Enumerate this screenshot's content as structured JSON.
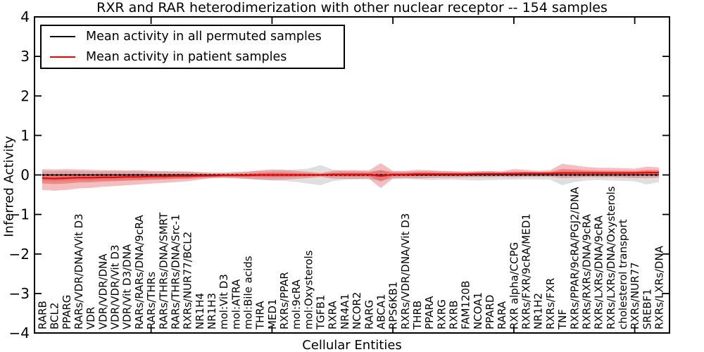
{
  "title": "RXR and RAR heterodimerization with other nuclear receptor -- 154 samples",
  "axes": {
    "ylabel": "Inferred Activity",
    "xlabel": "Cellular Entities",
    "ylim": [
      -4,
      4
    ],
    "yticks": [
      -4,
      -3,
      -2,
      -1,
      0,
      1,
      2,
      3,
      4
    ],
    "x_major_tick_category_indices": [
      9,
      19,
      29,
      39,
      49
    ]
  },
  "legend": {
    "items": [
      {
        "label": "Mean activity in all permuted samples",
        "color": "#000000"
      },
      {
        "label": "Mean activity in patient samples",
        "color": "#ff0000"
      }
    ]
  },
  "colors": {
    "permuted_line": "#000000",
    "patient_line": "#ff0000",
    "permuted_band": "#8a8a8a",
    "patient_band": "#dc2828",
    "frame": "#000000"
  },
  "chart_data": {
    "type": "line",
    "title": "RXR and RAR heterodimerization with other nuclear receptor -- 154 samples",
    "xlabel": "Cellular Entities",
    "ylabel": "Inferred Activity",
    "ylim": [
      -4,
      4
    ],
    "grid": false,
    "legend_position": "upper left",
    "categories": [
      "RARB",
      "BCL2",
      "PPARG",
      "RARs/VDR/DNA/Vit D3",
      "VDR",
      "VDR/VDR/DNA",
      "VDR/VDR/Vit D3",
      "VDR/Vit D3/DNA",
      "RARs/RARs/DNA/9cRA",
      "RARs/THRs",
      "RARs/THRs/DNA/SMRT",
      "RARs/THRs/DNA/Src-1",
      "RXRs/NUR77/BCL2",
      "NR1H4",
      "NR1H3",
      "mol:Vit D3",
      "mol:ATRA",
      "mol:Bile acids",
      "THRA",
      "MED1",
      "RXRs/PPAR",
      "mol:9cRA",
      "mol:Oxysterols",
      "TGFB1",
      "RXRA",
      "NR4A1",
      "NCOR2",
      "RARG",
      "ABCA1",
      "RPS6KB1",
      "RXRs/VDR/DNA/Vit D3",
      "THRB",
      "PPARA",
      "RXRG",
      "RXRB",
      "FAM120B",
      "NCOA1",
      "PPARD",
      "RARA",
      "RXR alpha/CCPG",
      "RXRs/FXR/9cRA/MED1",
      "NR1H2",
      "RXRs/FXR",
      "TNF",
      "RXRs/PPAR/9cRA/PGJ2/DNA",
      "RXRs/RXRs/DNA/9cRA",
      "RXRs/LXRs/DNA/9cRA",
      "RXRs/LXRs/DNA/Oxysterols",
      "cholesterol transport",
      "RXRs/NUR77",
      "SREBF1",
      "RXRs/LXRs/DNA"
    ],
    "series": [
      {
        "name": "Mean activity in all permuted samples",
        "color": "#000000",
        "values": [
          0,
          0,
          0,
          0,
          0,
          0,
          0,
          0,
          0,
          0,
          0,
          0,
          0,
          0,
          0,
          0,
          0,
          0,
          0,
          0,
          0,
          0,
          0,
          0,
          0,
          0,
          0,
          0,
          0,
          0,
          0,
          0,
          0,
          0,
          0,
          0,
          0,
          0,
          0,
          0,
          0,
          0,
          0,
          0,
          0,
          0,
          0,
          0,
          0,
          0,
          0,
          0
        ]
      },
      {
        "name": "Mean activity in patient samples",
        "color": "#ff0000",
        "values": [
          -0.08,
          -0.09,
          -0.08,
          -0.07,
          -0.07,
          -0.06,
          -0.06,
          -0.05,
          -0.05,
          -0.04,
          -0.04,
          -0.03,
          -0.03,
          -0.02,
          -0.02,
          -0.01,
          -0.01,
          -0.01,
          0,
          0,
          0,
          0,
          0,
          0,
          0.01,
          0.01,
          0.01,
          0.01,
          -0.03,
          0.01,
          0.01,
          0.02,
          0.02,
          0.02,
          0.02,
          0.02,
          0.03,
          0.03,
          0.03,
          0.03,
          0.04,
          0.04,
          0.04,
          0.05,
          0.05,
          0.05,
          0.05,
          0.05,
          0.05,
          0.05,
          0.06,
          0.06
        ]
      }
    ],
    "bands": [
      {
        "name": "permuted-samples-range",
        "color": "#8a8a8a",
        "opacity": 0.27,
        "upper": [
          0.1,
          0.1,
          0.1,
          0.1,
          0.09,
          0.09,
          0.09,
          0.09,
          0.09,
          0.08,
          0.08,
          0.08,
          0.08,
          0.07,
          0.07,
          0.07,
          0.08,
          0.09,
          0.1,
          0.11,
          0.12,
          0.14,
          0.16,
          0.25,
          0.14,
          0.1,
          0.1,
          0.09,
          0.12,
          0.09,
          0.09,
          0.09,
          0.1,
          0.09,
          0.09,
          0.09,
          0.09,
          0.09,
          0.08,
          0.08,
          0.08,
          0.08,
          0.08,
          0.09,
          0.09,
          0.08,
          0.08,
          0.08,
          0.08,
          0.08,
          0.09,
          0.08
        ],
        "lower": [
          -0.15,
          -0.16,
          -0.15,
          -0.14,
          -0.14,
          -0.13,
          -0.13,
          -0.12,
          -0.12,
          -0.11,
          -0.11,
          -0.1,
          -0.1,
          -0.09,
          -0.08,
          -0.08,
          -0.09,
          -0.1,
          -0.12,
          -0.14,
          -0.15,
          -0.18,
          -0.22,
          -0.26,
          -0.16,
          -0.12,
          -0.11,
          -0.11,
          -0.14,
          -0.1,
          -0.1,
          -0.11,
          -0.13,
          -0.12,
          -0.12,
          -0.13,
          -0.14,
          -0.13,
          -0.12,
          -0.12,
          -0.11,
          -0.11,
          -0.12,
          -0.26,
          -0.18,
          -0.14,
          -0.13,
          -0.14,
          -0.15,
          -0.16,
          -0.24,
          -0.18
        ]
      },
      {
        "name": "patient-samples-range-outer",
        "color": "#dc2828",
        "opacity": 0.3,
        "upper": [
          0.15,
          0.14,
          0.15,
          0.14,
          0.13,
          0.12,
          0.12,
          0.11,
          0.12,
          0.1,
          0.1,
          0.09,
          0.09,
          0.07,
          0.05,
          0.05,
          0.06,
          0.08,
          0.12,
          0.14,
          0.13,
          0.1,
          0.08,
          0.05,
          0.1,
          0.12,
          0.12,
          0.11,
          0.3,
          0.1,
          0.1,
          0.13,
          0.12,
          0.1,
          0.09,
          0.08,
          0.09,
          0.1,
          0.09,
          0.15,
          0.13,
          0.1,
          0.12,
          0.28,
          0.24,
          0.2,
          0.18,
          0.18,
          0.17,
          0.16,
          0.21,
          0.19
        ],
        "lower": [
          -0.38,
          -0.4,
          -0.38,
          -0.34,
          -0.33,
          -0.3,
          -0.28,
          -0.26,
          -0.24,
          -0.22,
          -0.2,
          -0.18,
          -0.16,
          -0.12,
          -0.08,
          -0.07,
          -0.08,
          -0.1,
          -0.12,
          -0.13,
          -0.12,
          -0.1,
          -0.08,
          -0.05,
          -0.09,
          -0.1,
          -0.1,
          -0.09,
          -0.33,
          -0.09,
          -0.08,
          -0.09,
          -0.08,
          -0.07,
          -0.07,
          -0.06,
          -0.06,
          -0.06,
          -0.05,
          -0.06,
          -0.05,
          -0.05,
          -0.05,
          -0.08,
          -0.07,
          -0.06,
          -0.06,
          -0.06,
          -0.07,
          -0.08,
          -0.08,
          -0.07
        ]
      },
      {
        "name": "patient-samples-range-inner",
        "color": "#dc2828",
        "opacity": 0.35,
        "upper": [
          0.024,
          0.014,
          0.024,
          0.025,
          0.02,
          0.021,
          0.021,
          0.022,
          0.027,
          0.023,
          0.023,
          0.024,
          0.024,
          0.021,
          0.012,
          0.017,
          0.022,
          0.031,
          0.054,
          0.063,
          0.059,
          0.045,
          0.036,
          0.023,
          0.051,
          0.06,
          0.06,
          0.055,
          0.119,
          0.051,
          0.051,
          0.07,
          0.065,
          0.056,
          0.052,
          0.047,
          0.057,
          0.062,
          0.057,
          0.084,
          0.081,
          0.067,
          0.076,
          0.154,
          0.136,
          0.118,
          0.109,
          0.109,
          0.104,
          0.1,
          0.128,
          0.119
        ],
        "lower": [
          -0.215,
          -0.23,
          -0.215,
          -0.192,
          -0.187,
          -0.168,
          -0.159,
          -0.145,
          -0.136,
          -0.121,
          -0.112,
          -0.098,
          -0.089,
          -0.065,
          -0.047,
          -0.037,
          -0.042,
          -0.051,
          -0.054,
          -0.059,
          -0.054,
          -0.045,
          -0.036,
          -0.023,
          -0.035,
          -0.04,
          -0.04,
          -0.035,
          -0.165,
          -0.035,
          -0.031,
          -0.03,
          -0.025,
          -0.021,
          -0.021,
          -0.016,
          -0.011,
          -0.011,
          -0.006,
          -0.011,
          0.0,
          0.0,
          0.0,
          -0.009,
          -0.004,
          0.001,
          0.001,
          0.001,
          -0.004,
          -0.009,
          -0.003,
          0.002
        ]
      }
    ]
  }
}
